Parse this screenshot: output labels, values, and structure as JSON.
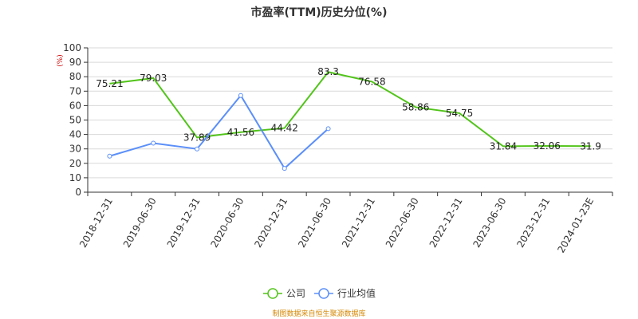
{
  "chart_data": {
    "type": "line",
    "title": "市盈率(TTM)历史分位(%)",
    "ylabel_unit": "(%)",
    "categories": [
      "2018-12-31",
      "2019-06-30",
      "2019-12-31",
      "2020-06-30",
      "2020-12-31",
      "2021-06-30",
      "2021-12-31",
      "2022-06-30",
      "2022-12-31",
      "2023-06-30",
      "2023-12-31",
      "2024-01-23E"
    ],
    "ylim": [
      0,
      100
    ],
    "yticks": [
      0,
      10,
      20,
      30,
      40,
      50,
      60,
      70,
      80,
      90,
      100
    ],
    "grid": true,
    "legend_position": "bottom-center",
    "series": [
      {
        "name": "公司",
        "color": "#52c41a",
        "values": [
          75.21,
          79.03,
          37.89,
          41.56,
          44.42,
          83.3,
          76.58,
          58.86,
          54.75,
          31.84,
          32.06,
          31.9
        ],
        "labels": [
          "75.21",
          "79.03",
          "37.89",
          "41.56",
          "44.42",
          "83.3",
          "76.58",
          "58.86",
          "54.75",
          "31.84",
          "32.06",
          "31.9"
        ]
      },
      {
        "name": "行业均值",
        "color": "#5b8ff9",
        "values": [
          25,
          34,
          30,
          67,
          16.5,
          44,
          null,
          null,
          null,
          null,
          null,
          null
        ]
      }
    ]
  },
  "source_note": "制图数据来自恒生聚源数据库",
  "colors": {
    "unit": "#cc0000",
    "source": "#d48806",
    "axis": "#333333",
    "grid": "#d9d9d9"
  }
}
